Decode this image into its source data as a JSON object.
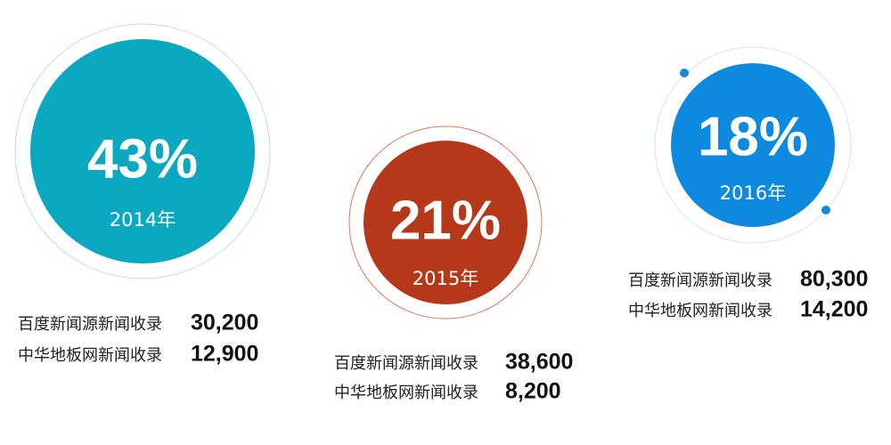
{
  "items": [
    {
      "percent": "43%",
      "year": "2014年",
      "stats": [
        {
          "label": "百度新闻源新闻收录",
          "value": "30,200"
        },
        {
          "label": "中华地板网新闻收录",
          "value": "12,900"
        }
      ]
    },
    {
      "percent": "21%",
      "year": "2015年",
      "stats": [
        {
          "label": "百度新闻源新闻收录",
          "value": "38,600"
        },
        {
          "label": "中华地板网新闻收录",
          "value": "8,200"
        }
      ]
    },
    {
      "percent": "18%",
      "year": "2016年",
      "stats": [
        {
          "label": "百度新闻源新闻收录",
          "value": "80,300"
        },
        {
          "label": "中华地板网新闻收录",
          "value": "14,200"
        }
      ]
    }
  ]
}
